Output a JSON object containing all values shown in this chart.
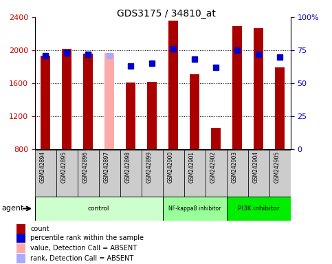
{
  "title": "GDS3175 / 34810_at",
  "samples": [
    "GSM242894",
    "GSM242895",
    "GSM242896",
    "GSM242897",
    "GSM242898",
    "GSM242899",
    "GSM242900",
    "GSM242901",
    "GSM242902",
    "GSM242903",
    "GSM242904",
    "GSM242905"
  ],
  "count_values": [
    1930,
    2020,
    1960,
    1970,
    1610,
    1615,
    2360,
    1710,
    1060,
    2290,
    2270,
    1790
  ],
  "rank_values": [
    71,
    73,
    72,
    71,
    63,
    65,
    76,
    68,
    62,
    75,
    72,
    70
  ],
  "absent_indices": [
    3
  ],
  "bar_color_normal": "#aa0000",
  "bar_color_absent": "#ffaaaa",
  "rank_color_normal": "#0000cc",
  "rank_color_absent": "#aaaaff",
  "ylim_left": [
    800,
    2400
  ],
  "ylim_right": [
    0,
    100
  ],
  "yticks_left": [
    800,
    1200,
    1600,
    2000,
    2400
  ],
  "yticks_right": [
    0,
    25,
    50,
    75,
    100
  ],
  "ytick_labels_right": [
    "0",
    "25",
    "50",
    "75",
    "100%"
  ],
  "groups": [
    {
      "label": "control",
      "start": 0,
      "end": 6,
      "color": "#ccffcc"
    },
    {
      "label": "NF-kappaB inhibitor",
      "start": 6,
      "end": 9,
      "color": "#99ff99"
    },
    {
      "label": "PI3K inhibitor",
      "start": 9,
      "end": 12,
      "color": "#00ee00"
    }
  ],
  "legend_items": [
    {
      "label": "count",
      "color": "#aa0000"
    },
    {
      "label": "percentile rank within the sample",
      "color": "#0000cc"
    },
    {
      "label": "value, Detection Call = ABSENT",
      "color": "#ffaaaa"
    },
    {
      "label": "rank, Detection Call = ABSENT",
      "color": "#aaaaff"
    }
  ],
  "bar_width": 0.45,
  "rank_marker_size": 6,
  "xlabel_color": "#cc0000",
  "ylabel_right_color": "#0000cc",
  "agent_label": "agent"
}
